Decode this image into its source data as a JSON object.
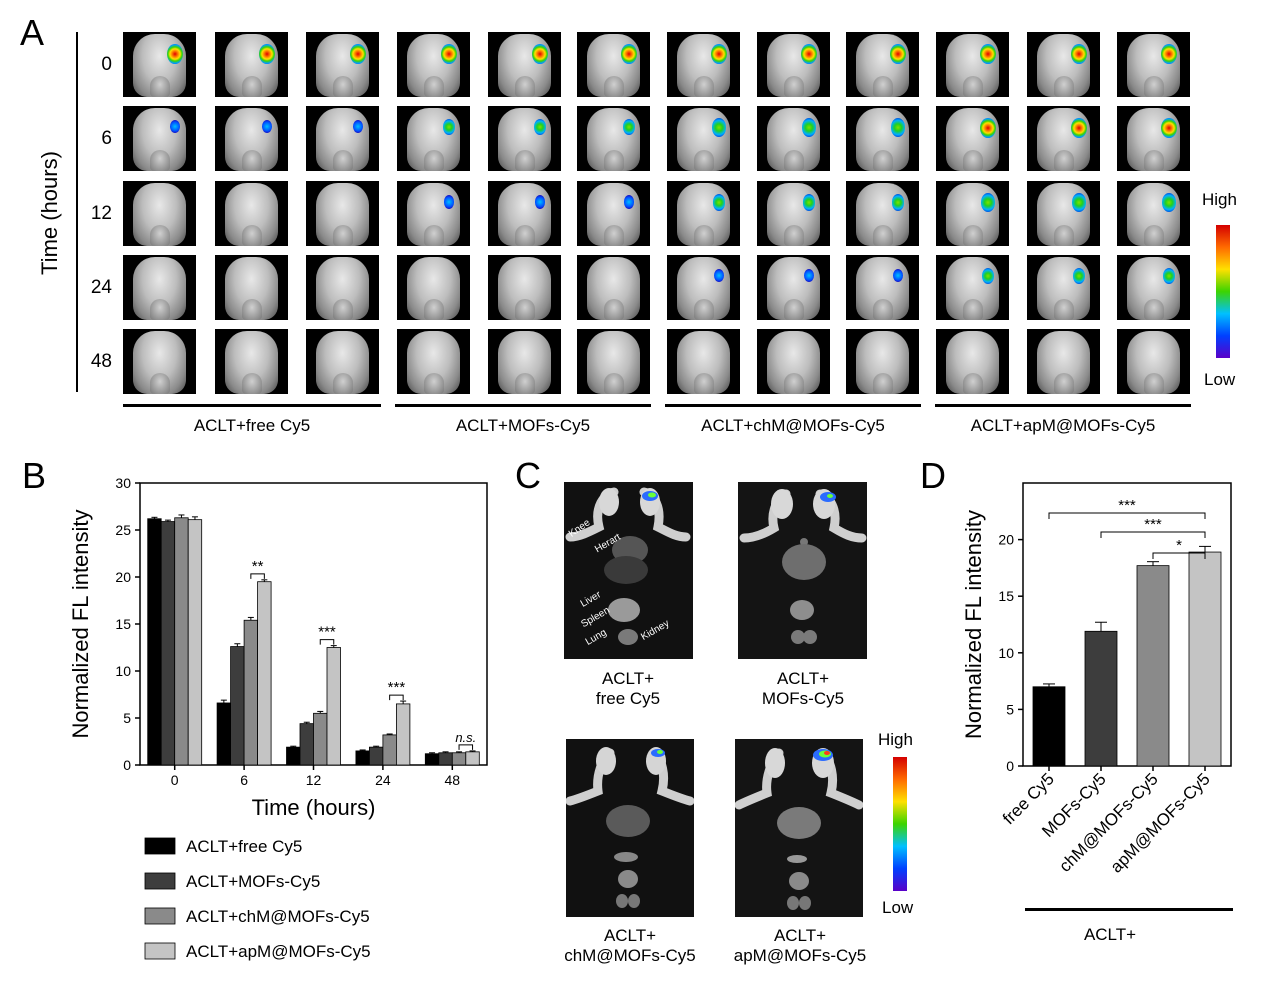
{
  "panelA": {
    "letter": "A",
    "axis_label": "Time (hours)",
    "time_labels": [
      "0",
      "6",
      "12",
      "24",
      "48"
    ],
    "groups": [
      "ACLT+free Cy5",
      "ACLT+MOFs-Cy5",
      "ACLT+chM@MOFs-Cy5",
      "ACLT+apM@MOFs-Cy5"
    ],
    "colorbar": {
      "high": "High",
      "low": "Low"
    }
  },
  "panelB": {
    "letter": "B",
    "chart_data": {
      "type": "bar",
      "categories": [
        "0",
        "6",
        "12",
        "24",
        "48"
      ],
      "xlabel": "Time (hours)",
      "ylabel": "Normalized FL intensity",
      "ylim": [
        0,
        30
      ],
      "yticks": [
        "0",
        "5",
        "10",
        "15",
        "20",
        "25",
        "30"
      ],
      "series": [
        {
          "name": "ACLT+free Cy5",
          "color": "#000000",
          "values": [
            26.2,
            6.6,
            1.9,
            1.5,
            1.2
          ],
          "errors": [
            0.15,
            0.3,
            0.1,
            0.1,
            0.1
          ]
        },
        {
          "name": "ACLT+MOFs-Cy5",
          "color": "#3d3d3d",
          "values": [
            25.9,
            12.6,
            4.4,
            1.9,
            1.3
          ],
          "errors": [
            0.15,
            0.3,
            0.15,
            0.1,
            0.1
          ]
        },
        {
          "name": "ACLT+chM@MOFs-Cy5",
          "color": "#8a8a8a",
          "values": [
            26.3,
            15.4,
            5.5,
            3.2,
            1.3
          ],
          "errors": [
            0.3,
            0.3,
            0.2,
            0.1,
            0.1
          ]
        },
        {
          "name": "ACLT+apM@MOFs-Cy5",
          "color": "#c4c4c4",
          "values": [
            26.1,
            19.5,
            12.5,
            6.5,
            1.4
          ],
          "errors": [
            0.3,
            0.2,
            0.2,
            0.3,
            0.1
          ]
        }
      ],
      "significance": [
        {
          "category": "6",
          "label": "**"
        },
        {
          "category": "12",
          "label": "***"
        },
        {
          "category": "24",
          "label": "***"
        },
        {
          "category": "48",
          "label": "n.s."
        }
      ]
    }
  },
  "panelC": {
    "letter": "C",
    "organ_labels": [
      "Knee",
      "Herart",
      "Liver",
      "Spleen",
      "Lung",
      "Kidney"
    ],
    "captions": [
      {
        "line1": "ACLT+",
        "line2": "free Cy5"
      },
      {
        "line1": "ACLT+",
        "line2": "MOFs-Cy5"
      },
      {
        "line1": "ACLT+",
        "line2": "chM@MOFs-Cy5"
      },
      {
        "line1": "ACLT+",
        "line2": "apM@MOFs-Cy5"
      }
    ],
    "colorbar": {
      "high": "High",
      "low": "Low"
    }
  },
  "panelD": {
    "letter": "D",
    "chart_data": {
      "type": "bar",
      "categories": [
        "free Cy5",
        "MOFs-Cy5",
        "chM@MOFs-Cy5",
        "apM@MOFs-Cy5"
      ],
      "values": [
        7.0,
        11.9,
        17.7,
        18.9
      ],
      "errors": [
        0.25,
        0.8,
        0.35,
        0.5
      ],
      "colors": [
        "#000000",
        "#3d3d3d",
        "#8a8a8a",
        "#c4c4c4"
      ],
      "ylabel": "Normalized FL intensity",
      "xlabel": "ACLT+",
      "ylim": [
        0,
        25
      ],
      "yticks": [
        "0",
        "5",
        "10",
        "15",
        "20"
      ],
      "significance": [
        {
          "from": 0,
          "to": 3,
          "label": "***"
        },
        {
          "from": 1,
          "to": 3,
          "label": "***"
        },
        {
          "from": 2,
          "to": 3,
          "label": "*"
        }
      ]
    }
  }
}
